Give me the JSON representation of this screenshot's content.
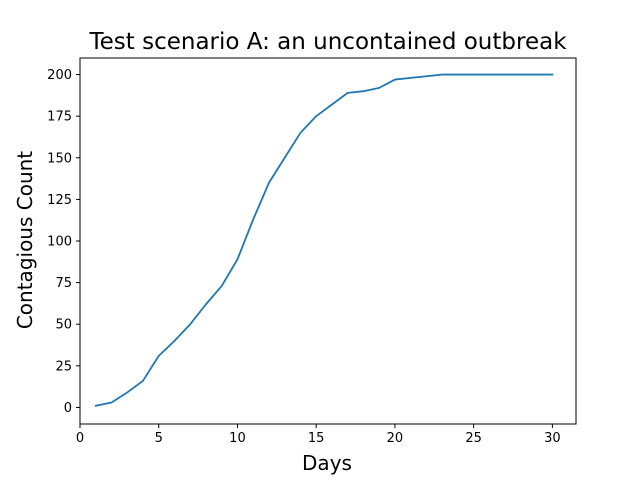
{
  "chart_data": {
    "type": "line",
    "title": "Test scenario A: an uncontained outbreak",
    "xlabel": "Days",
    "ylabel": "Contagious Count",
    "xlim": [
      0,
      31.5
    ],
    "ylim": [
      -9.95,
      209.95
    ],
    "xticks": [
      0,
      5,
      10,
      15,
      20,
      25,
      30
    ],
    "yticks": [
      0,
      25,
      50,
      75,
      100,
      125,
      150,
      175,
      200
    ],
    "grid": false,
    "legend": "none",
    "series": [
      {
        "color": "#1f77b4",
        "x": [
          1,
          2,
          3,
          4,
          5,
          6,
          7,
          8,
          9,
          10,
          11,
          12,
          13,
          14,
          15,
          16,
          17,
          18,
          19,
          20,
          21,
          22,
          23,
          24,
          25,
          26,
          27,
          28,
          29,
          30
        ],
        "y": [
          1,
          3,
          9,
          16,
          31,
          40,
          50,
          62,
          73,
          89,
          113,
          135,
          150,
          165,
          175,
          182,
          189,
          190,
          192,
          197,
          198,
          199,
          200,
          200,
          200,
          200,
          200,
          200,
          200,
          200
        ]
      }
    ]
  }
}
